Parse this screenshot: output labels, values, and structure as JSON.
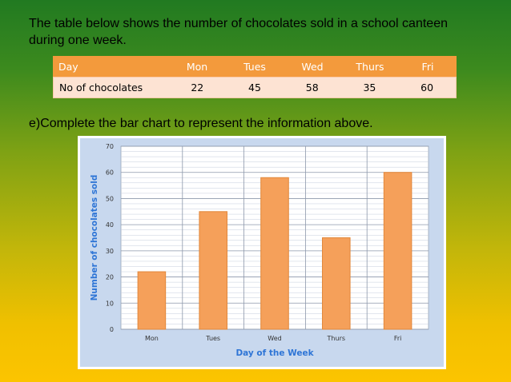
{
  "intro_text": "The table below shows the number of chocolates sold in a school canteen during one week.",
  "table": {
    "headers": [
      "Day",
      "Mon",
      "Tues",
      "Wed",
      "Thurs",
      "Fri"
    ],
    "row": [
      "No of chocolates",
      "22",
      "45",
      "58",
      "35",
      "60"
    ]
  },
  "prompt": "e)Complete the bar chart to represent the information above.",
  "colors": {
    "table_header": "#f39a3c",
    "table_row": "#fde3d3",
    "bar_fill": "#f5a05a",
    "bar_stroke": "#e2873a",
    "plot_bg": "#ffffff",
    "chart_bg": "#c8d8ee",
    "axis_title": "#2e75d6"
  },
  "chart_data": {
    "type": "bar",
    "categories": [
      "Mon",
      "Tues",
      "Wed",
      "Thurs",
      "Fri"
    ],
    "values": [
      22,
      45,
      58,
      35,
      60
    ],
    "title": "",
    "xlabel": "Day of the Week",
    "ylabel": "Number of chocolates sold",
    "ylim": [
      0,
      70
    ],
    "yticks": [
      0,
      10,
      20,
      30,
      40,
      50,
      60,
      70
    ],
    "grid": true
  }
}
